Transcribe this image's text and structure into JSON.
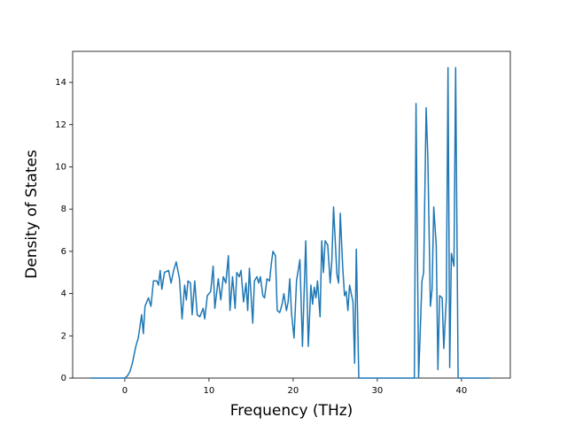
{
  "chart_data": {
    "type": "line",
    "xlabel": "Frequency (THz)",
    "ylabel": "Density of States",
    "xlim": [
      -6.2,
      45.8
    ],
    "ylim": [
      0,
      15.47
    ],
    "xticks": [
      0,
      10,
      20,
      30,
      40
    ],
    "yticks": [
      0,
      2,
      4,
      6,
      8,
      10,
      12,
      14
    ],
    "series": [
      {
        "color": "#1f77b4",
        "x": [
          -4.1,
          0,
          0.3,
          0.6,
          0.9,
          1.3,
          1.6,
          2.0,
          2.2,
          2.4,
          2.8,
          3.1,
          3.4,
          3.8,
          4.0,
          4.2,
          4.4,
          4.7,
          5.2,
          5.5,
          5.8,
          6.1,
          6.5,
          6.8,
          7.1,
          7.3,
          7.5,
          7.8,
          8.0,
          8.3,
          8.6,
          8.9,
          9.3,
          9.5,
          9.8,
          10.2,
          10.5,
          10.7,
          11.1,
          11.4,
          11.7,
          12.0,
          12.3,
          12.5,
          12.8,
          13.1,
          13.3,
          13.6,
          13.8,
          14.1,
          14.4,
          14.6,
          14.8,
          15.2,
          15.4,
          15.7,
          15.9,
          16.1,
          16.4,
          16.6,
          16.9,
          17.2,
          17.4,
          17.6,
          17.9,
          18.1,
          18.4,
          18.7,
          18.9,
          19.2,
          19.4,
          19.6,
          19.8,
          20.1,
          20.4,
          20.8,
          21.1,
          21.5,
          21.8,
          22.1,
          22.3,
          22.5,
          22.7,
          22.9,
          23.2,
          23.4,
          23.6,
          23.8,
          24.1,
          24.4,
          24.6,
          24.8,
          25.2,
          25.4,
          25.6,
          25.9,
          26.1,
          26.3,
          26.5,
          26.7,
          27.1,
          27.3,
          27.5,
          27.8,
          34.4,
          34.6,
          34.9,
          35.3,
          35.5,
          35.8,
          36.0,
          36.3,
          36.5,
          36.7,
          37.0,
          37.2,
          37.4,
          37.7,
          37.9,
          38.2,
          38.4,
          38.6,
          38.8,
          39.1,
          39.3,
          39.6,
          43.4
        ],
        "values": [
          0,
          0,
          0.1,
          0.3,
          0.7,
          1.5,
          1.9,
          3.0,
          2.1,
          3.4,
          3.8,
          3.4,
          4.6,
          4.6,
          4.4,
          5.1,
          4.2,
          5.0,
          5.1,
          4.5,
          5.1,
          5.5,
          4.7,
          2.8,
          4.4,
          3.7,
          4.6,
          4.5,
          3.0,
          4.6,
          3.0,
          2.9,
          3.3,
          2.8,
          3.9,
          4.1,
          5.3,
          3.3,
          4.7,
          3.7,
          4.8,
          4.5,
          5.8,
          3.2,
          4.8,
          3.3,
          5.0,
          4.8,
          5.1,
          3.6,
          4.5,
          3.2,
          5.2,
          2.6,
          4.6,
          4.8,
          4.5,
          4.8,
          3.9,
          3.8,
          4.7,
          4.6,
          5.4,
          6.0,
          5.8,
          3.2,
          3.1,
          3.5,
          4.0,
          3.2,
          3.6,
          4.7,
          3.1,
          1.9,
          4.6,
          5.6,
          1.5,
          6.5,
          1.5,
          4.4,
          3.5,
          4.3,
          3.8,
          4.6,
          2.9,
          6.5,
          5.0,
          6.5,
          6.3,
          4.5,
          5.6,
          8.1,
          4.9,
          4.5,
          7.8,
          5.2,
          3.9,
          4.1,
          3.2,
          4.4,
          3.6,
          0.7,
          6.1,
          0,
          0,
          13.0,
          0,
          4.6,
          5.0,
          12.8,
          10.5,
          3.4,
          4.2,
          8.1,
          6.3,
          0.4,
          3.9,
          3.8,
          1.4,
          3.8,
          14.7,
          0.5,
          5.9,
          5.3,
          14.7,
          0,
          0
        ]
      }
    ]
  }
}
